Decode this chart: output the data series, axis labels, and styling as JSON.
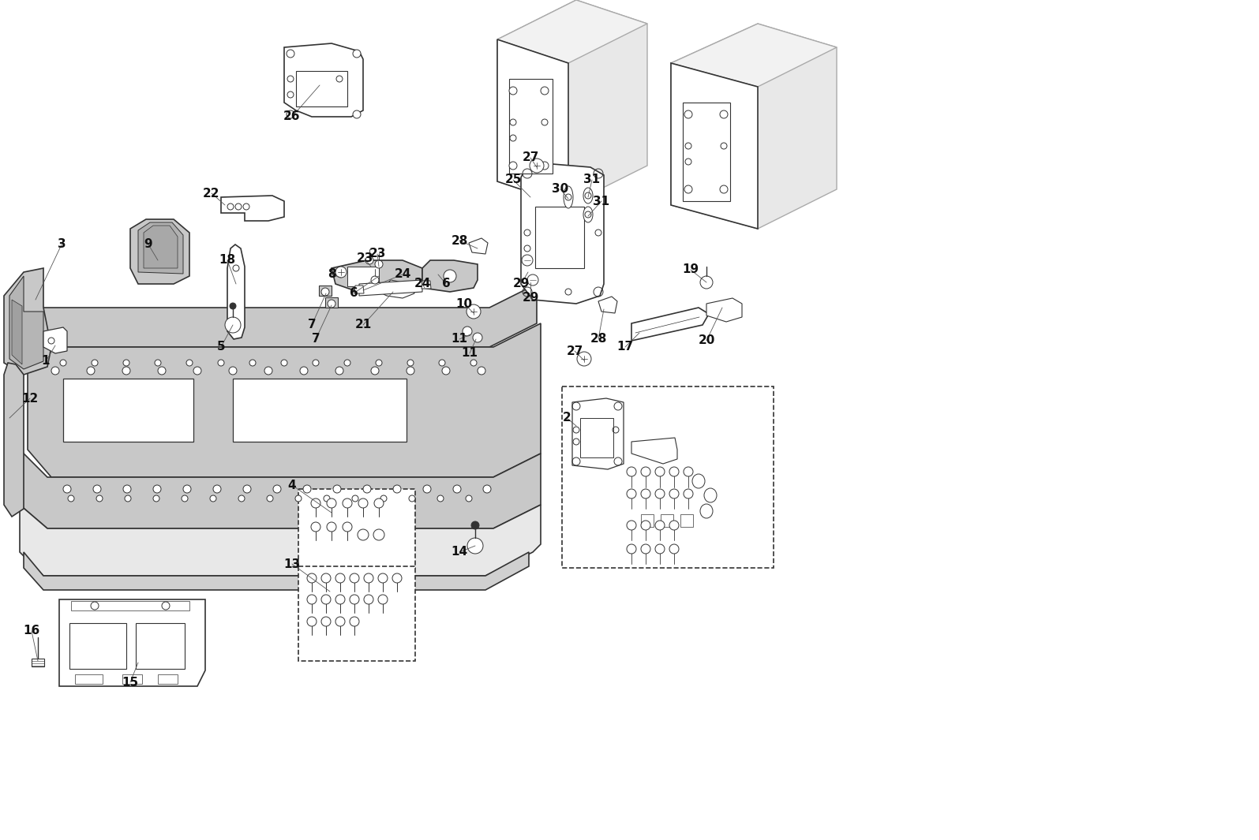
{
  "bg_color": "#ffffff",
  "line_color": "#333333",
  "fill_color": "#c8c8c8",
  "light_fill": "#e8e8e8",
  "rail_fill": "#eeeeee",
  "rail_line": "#aaaaaa"
}
